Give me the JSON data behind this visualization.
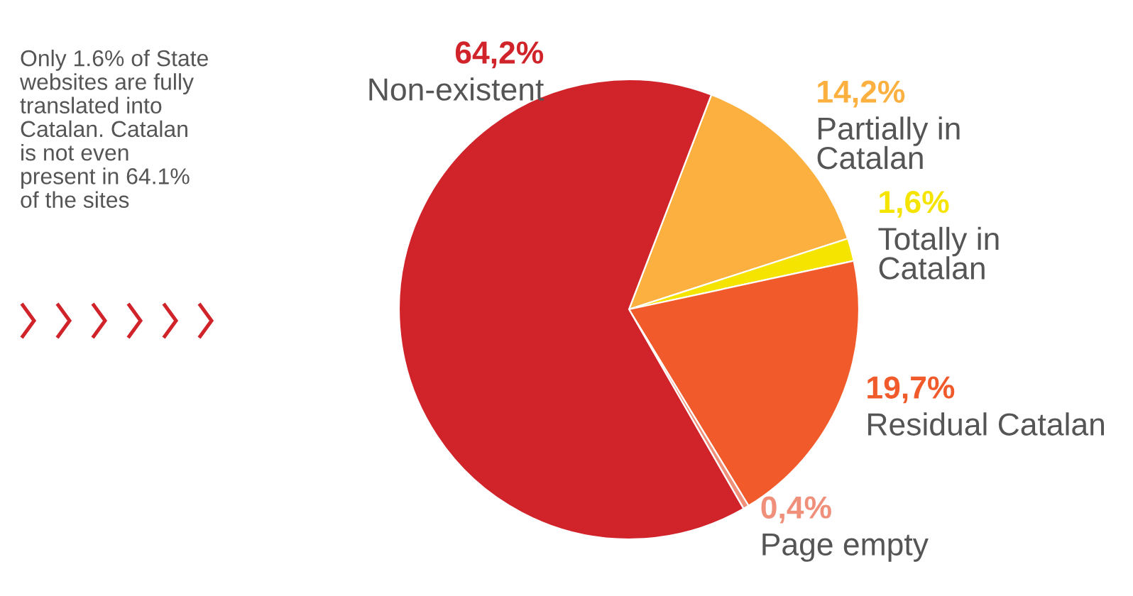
{
  "chart_data": {
    "type": "pie",
    "categories": [
      "Partially in\nCatalan",
      "Totally in\nCatalan",
      "Residual Catalan",
      "Page empty",
      "Non-existent"
    ],
    "values": [
      14.2,
      1.6,
      19.7,
      0.4,
      64.2
    ],
    "value_labels": [
      "14,2%",
      "1,6%",
      "19,7%",
      "0,4%",
      "64,2%"
    ],
    "colors": [
      "#fbb040",
      "#f5e400",
      "#f15a2b",
      "#f0907a",
      "#d0232a"
    ],
    "annotations": [
      "Only 1.6% of State\nwebsites are fully\ntranslated into\nCatalan. Catalan\nis not even\npresent in 64.1%\nof the sites"
    ],
    "legend": false
  }
}
